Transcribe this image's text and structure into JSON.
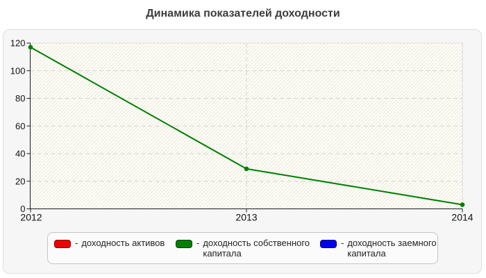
{
  "title": "Динамика показателей доходности",
  "chart_data": {
    "type": "line",
    "title": "Динамика показателей доходности",
    "categories": [
      "2012",
      "2013",
      "2014"
    ],
    "series": [
      {
        "name": "доходность активов",
        "color": "#ee0000",
        "values": []
      },
      {
        "name": "доходность собственного капитала",
        "color": "#008000",
        "values": [
          117,
          29,
          3
        ]
      },
      {
        "name": "доходность заемного капитала",
        "color": "#0000ee",
        "values": []
      }
    ],
    "xlabel": "",
    "ylabel": "",
    "ylim": [
      0,
      120
    ],
    "yticks": [
      0,
      20,
      40,
      60,
      80,
      100,
      120
    ],
    "grid": "dashed horizontal and vertical",
    "legend_position": "bottom"
  },
  "legend": {
    "items": [
      {
        "color": "#ee0000",
        "border": "#8b0000",
        "dash": "-",
        "lines": [
          "доходность активов"
        ]
      },
      {
        "color": "#008000",
        "border": "#004000",
        "dash": "-",
        "lines": [
          "доходность собственного",
          "капитала"
        ]
      },
      {
        "color": "#0000ee",
        "border": "#00008b",
        "dash": "-",
        "lines": [
          "доходность заемного",
          "капитала"
        ]
      }
    ]
  },
  "colors": {
    "line_green": "#008000",
    "swatch_red": "#ee0000",
    "swatch_blue": "#0000ee",
    "axis": "#1a1a1a",
    "grid": "#d2d2d2",
    "hatch": "#e9e5d6",
    "plot_bg": "#fffef9",
    "plot_border": "#dedede",
    "card_bg": "#f6f6f6",
    "card_border": "#dcdcdc",
    "legend_bg": "#fbfbfb",
    "legend_border": "#c4c4c4",
    "title_color": "#3c3c3c",
    "tick_label": "#111111"
  }
}
